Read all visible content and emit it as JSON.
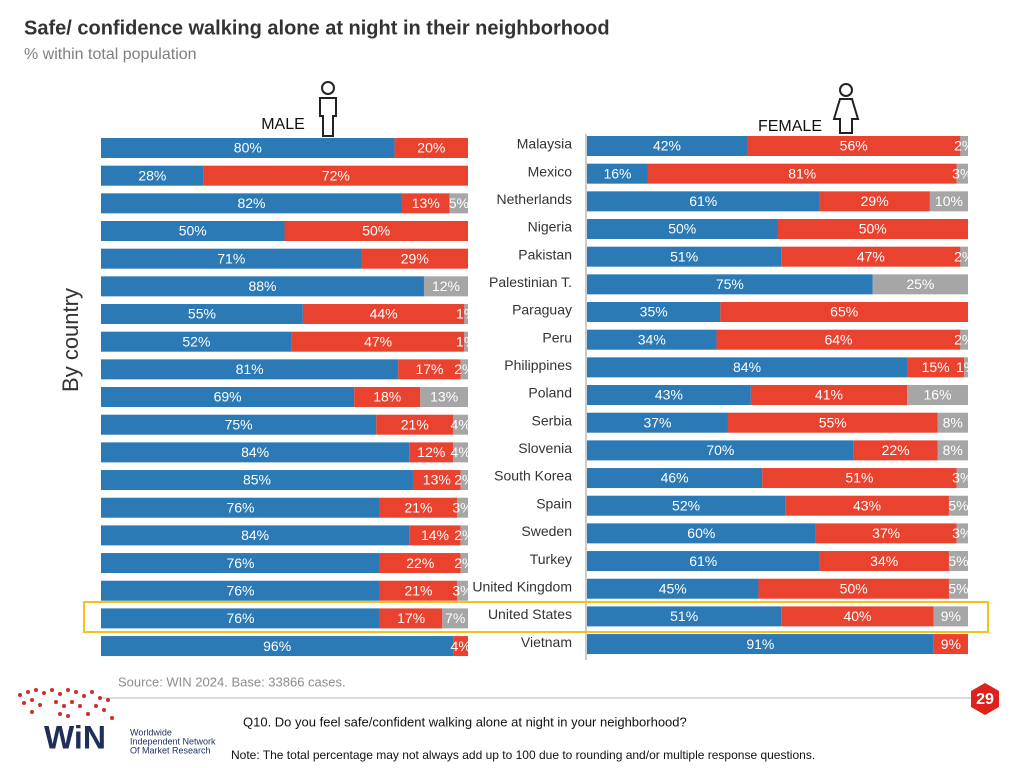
{
  "title": "Safe/ confidence walking alone at night in their neighborhood",
  "subtitle": "% within total population",
  "axis_label": "By country",
  "source": "Source: WIN 2024. Base: 33866 cases.",
  "question": "Q10. Do you feel safe/confident walking alone at night in your neighborhood?",
  "note": "Note: The total percentage may not always add up to 100 due to rounding and/or multiple response questions.",
  "page_number": "29",
  "logo": {
    "mark": "WiN",
    "lines": [
      "Worldwide",
      "Independent Network",
      "Of Market Research"
    ]
  },
  "highlight": "United States",
  "chart_data": [
    {
      "type": "bar",
      "title": "MALE",
      "xlim": [
        0,
        100
      ],
      "categories": [
        "Malaysia",
        "Mexico",
        "Netherlands",
        "Nigeria",
        "Pakistan",
        "Palestinian T.",
        "Paraguay",
        "Peru",
        "Philippines",
        "Poland",
        "Serbia",
        "Slovenia",
        "South Korea",
        "Spain",
        "Sweden",
        "Turkey",
        "United Kingdom",
        "United States",
        "Vietnam"
      ],
      "series": [
        {
          "color": "#2b79b5",
          "values": [
            80,
            28,
            82,
            50,
            71,
            88,
            55,
            52,
            81,
            69,
            75,
            84,
            85,
            76,
            84,
            76,
            76,
            76,
            96
          ],
          "value_labels": [
            "80%",
            "28%",
            "82%",
            "50%",
            "71%",
            "88%",
            "55%",
            "52%",
            "81%",
            "69%",
            "75%",
            "84%",
            "85%",
            "76%",
            "84%",
            "76%",
            "76%",
            "76%",
            "96%"
          ]
        },
        {
          "color": "#e9422f",
          "values": [
            20,
            72,
            13,
            50,
            29,
            0,
            44,
            47,
            17,
            18,
            21,
            12,
            13,
            21,
            14,
            22,
            21,
            17,
            4
          ],
          "value_labels": [
            "20%",
            "72%",
            "13%",
            "50%",
            "29%",
            null,
            "44%",
            "47%",
            "17%",
            "18%",
            "21%",
            "12%",
            "13%",
            "21%",
            "14%",
            "22%",
            "21%",
            "17%",
            "4%"
          ]
        },
        {
          "color": "#a6a6a6",
          "values": [
            0,
            0,
            5,
            0,
            0,
            12,
            1,
            1,
            2,
            13,
            4,
            4,
            2,
            3,
            2,
            2,
            3,
            7,
            0
          ],
          "value_labels": [
            null,
            null,
            "5%",
            null,
            null,
            "12%",
            "1%",
            "1%",
            "2%",
            "13%",
            "4%",
            "4%",
            "2%",
            "3%",
            "2%",
            "2%",
            "3%",
            "7%",
            null
          ]
        }
      ]
    },
    {
      "type": "bar",
      "title": "FEMALE",
      "xlim": [
        0,
        100
      ],
      "series": [
        {
          "color": "#2b79b5",
          "values": [
            42,
            16,
            61,
            50,
            51,
            75,
            35,
            34,
            84,
            43,
            37,
            70,
            46,
            52,
            60,
            61,
            45,
            51,
            91
          ],
          "value_labels": [
            "42%",
            "16%",
            "61%",
            "50%",
            "51%",
            "75%",
            "35%",
            "34%",
            "84%",
            "43%",
            "37%",
            "70%",
            "46%",
            "52%",
            "60%",
            "61%",
            "45%",
            "51%",
            "91%"
          ]
        },
        {
          "color": "#e9422f",
          "values": [
            56,
            81,
            29,
            50,
            47,
            0,
            65,
            64,
            15,
            41,
            55,
            22,
            51,
            43,
            37,
            34,
            50,
            40,
            9
          ],
          "value_labels": [
            "56%",
            "81%",
            "29%",
            "50%",
            "47%",
            null,
            "65%",
            "64%",
            "15%",
            "41%",
            "55%",
            "22%",
            "51%",
            "43%",
            "37%",
            "34%",
            "50%",
            "40%",
            "9%"
          ]
        },
        {
          "color": "#a6a6a6",
          "values": [
            2,
            3,
            10,
            0,
            2,
            25,
            0,
            2,
            1,
            16,
            8,
            8,
            3,
            5,
            3,
            5,
            5,
            9,
            0
          ],
          "value_labels": [
            "2%",
            "3%",
            "10%",
            null,
            "2%",
            "25%",
            null,
            "2%",
            "1%",
            "16%",
            "8%",
            "8%",
            "3%",
            "5%",
            "3%",
            "5%",
            "5%",
            "9%",
            null
          ]
        }
      ]
    }
  ]
}
